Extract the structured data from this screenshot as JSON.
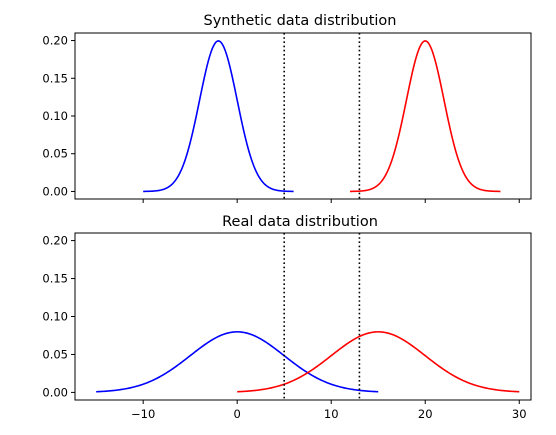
{
  "chart_data": [
    {
      "type": "line",
      "title": "Synthetic data distribution",
      "xlabel": "",
      "ylabel": "",
      "xlim": [
        -17.25,
        31.25
      ],
      "ylim": [
        -0.01,
        0.21
      ],
      "xticks": [
        -10,
        0,
        10,
        20,
        30
      ],
      "show_xtick_labels": false,
      "yticks": [
        0.0,
        0.05,
        0.1,
        0.15,
        0.2
      ],
      "ytick_labels": [
        "0.00",
        "0.05",
        "0.10",
        "0.15",
        "0.20"
      ],
      "grid": false,
      "series": [
        {
          "color": "#0000ff",
          "distribution": "normal",
          "mean": -2,
          "std": 2,
          "x_range": [
            -10,
            6
          ]
        },
        {
          "color": "#ff0000",
          "distribution": "normal",
          "mean": 20,
          "std": 2,
          "x_range": [
            12,
            28
          ]
        }
      ],
      "vlines": [
        {
          "x": 5,
          "style": "dotted",
          "color": "#000000"
        },
        {
          "x": 13,
          "style": "dotted",
          "color": "#000000"
        }
      ]
    },
    {
      "type": "line",
      "title": "Real data distribution",
      "xlabel": "",
      "ylabel": "",
      "xlim": [
        -17.25,
        31.25
      ],
      "ylim": [
        -0.01,
        0.21
      ],
      "xticks": [
        -10,
        0,
        10,
        20,
        30
      ],
      "xtick_labels": [
        "−10",
        "0",
        "10",
        "20",
        "30"
      ],
      "show_xtick_labels": true,
      "yticks": [
        0.0,
        0.05,
        0.1,
        0.15,
        0.2
      ],
      "ytick_labels": [
        "0.00",
        "0.05",
        "0.10",
        "0.15",
        "0.20"
      ],
      "grid": false,
      "series": [
        {
          "color": "#0000ff",
          "distribution": "normal",
          "mean": 0,
          "std": 5,
          "x_range": [
            -15,
            15
          ]
        },
        {
          "color": "#ff0000",
          "distribution": "normal",
          "mean": 15,
          "std": 5,
          "x_range": [
            0,
            30
          ]
        }
      ],
      "vlines": [
        {
          "x": 5,
          "style": "dotted",
          "color": "#000000"
        },
        {
          "x": 13,
          "style": "dotted",
          "color": "#000000"
        }
      ]
    }
  ]
}
